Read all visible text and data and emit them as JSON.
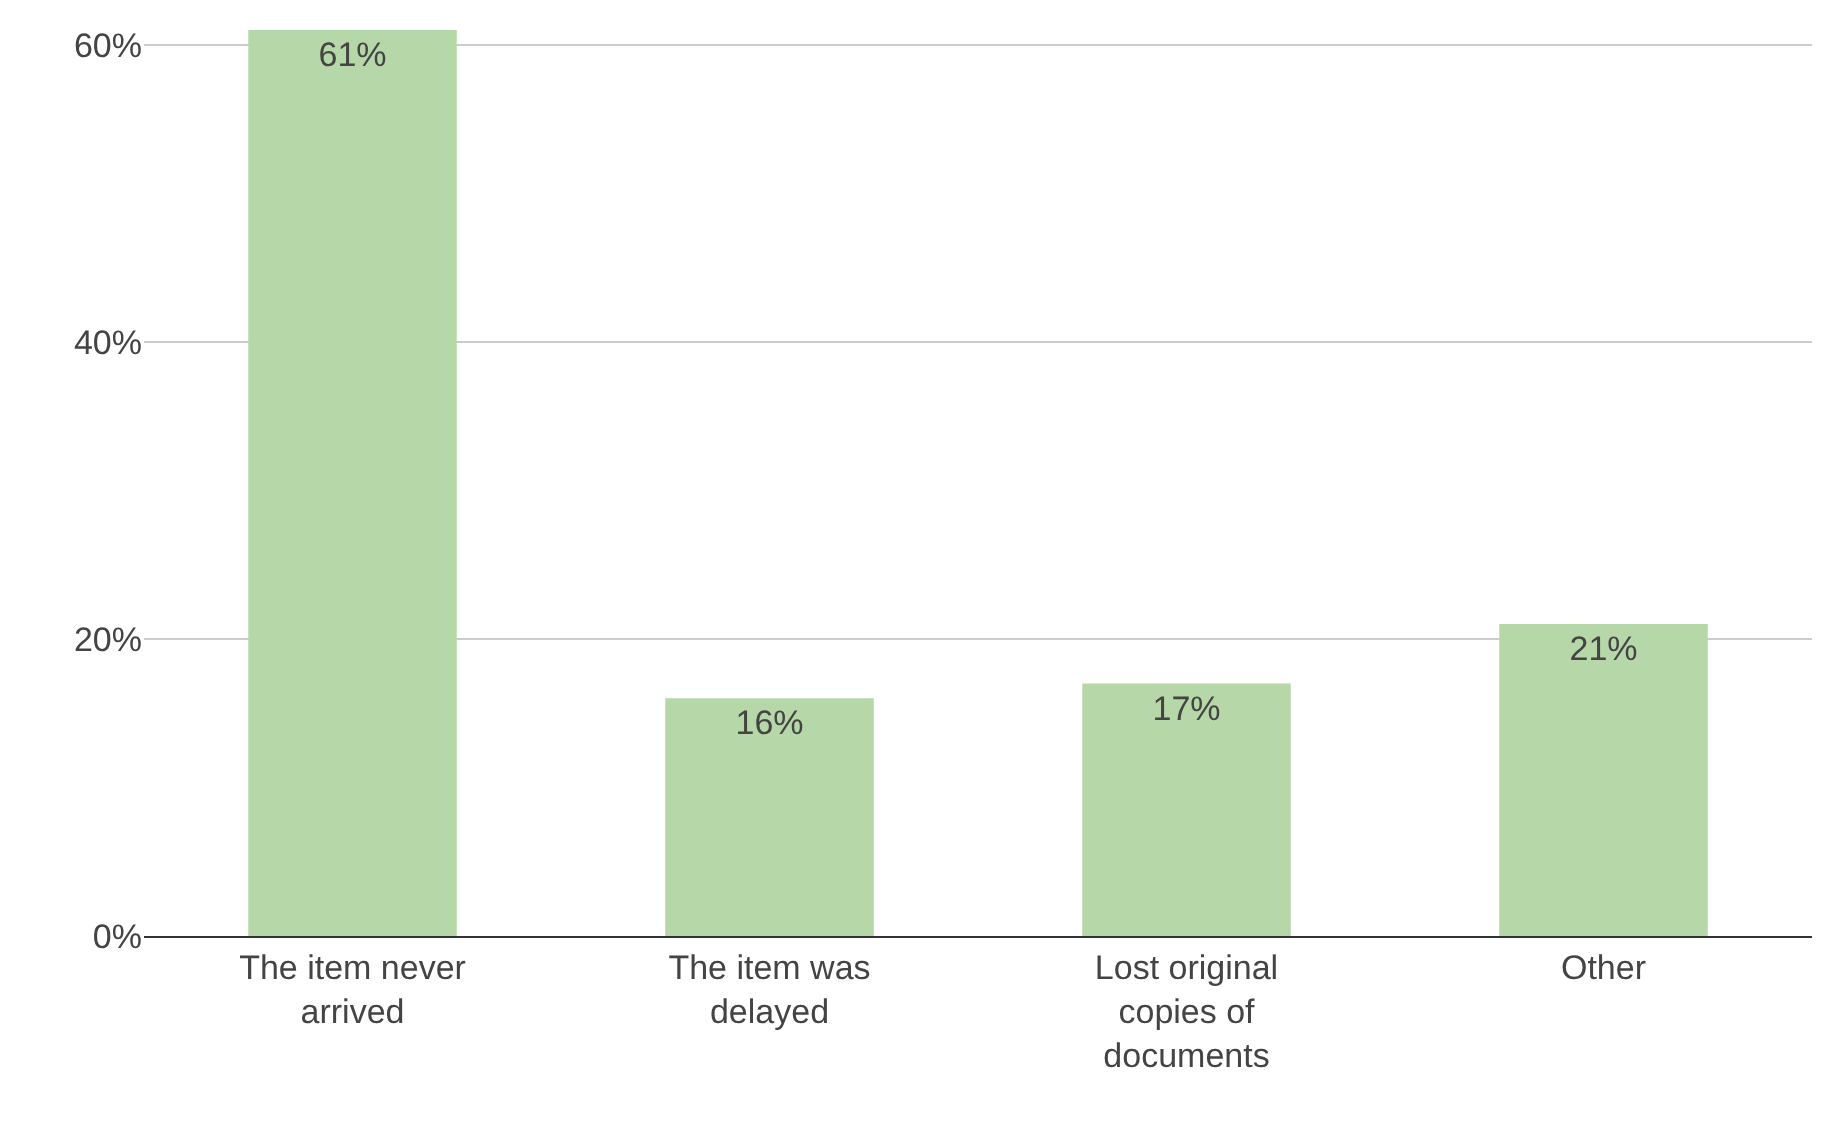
{
  "chart_data": {
    "type": "bar",
    "categories": [
      "The item never arrived",
      "The item was delayed",
      "Lost original copies of documents",
      "Other"
    ],
    "values": [
      61,
      16,
      17,
      21
    ],
    "value_labels": [
      "61%",
      "16%",
      "17%",
      "21%"
    ],
    "color": "#b6d7a8",
    "ylim": [
      0,
      61
    ],
    "yticks": [
      {
        "value": 0,
        "label": "0%"
      },
      {
        "value": 20,
        "label": "20%"
      },
      {
        "value": 40,
        "label": "40%"
      },
      {
        "value": 60,
        "label": "60%"
      }
    ],
    "grid": "y"
  }
}
